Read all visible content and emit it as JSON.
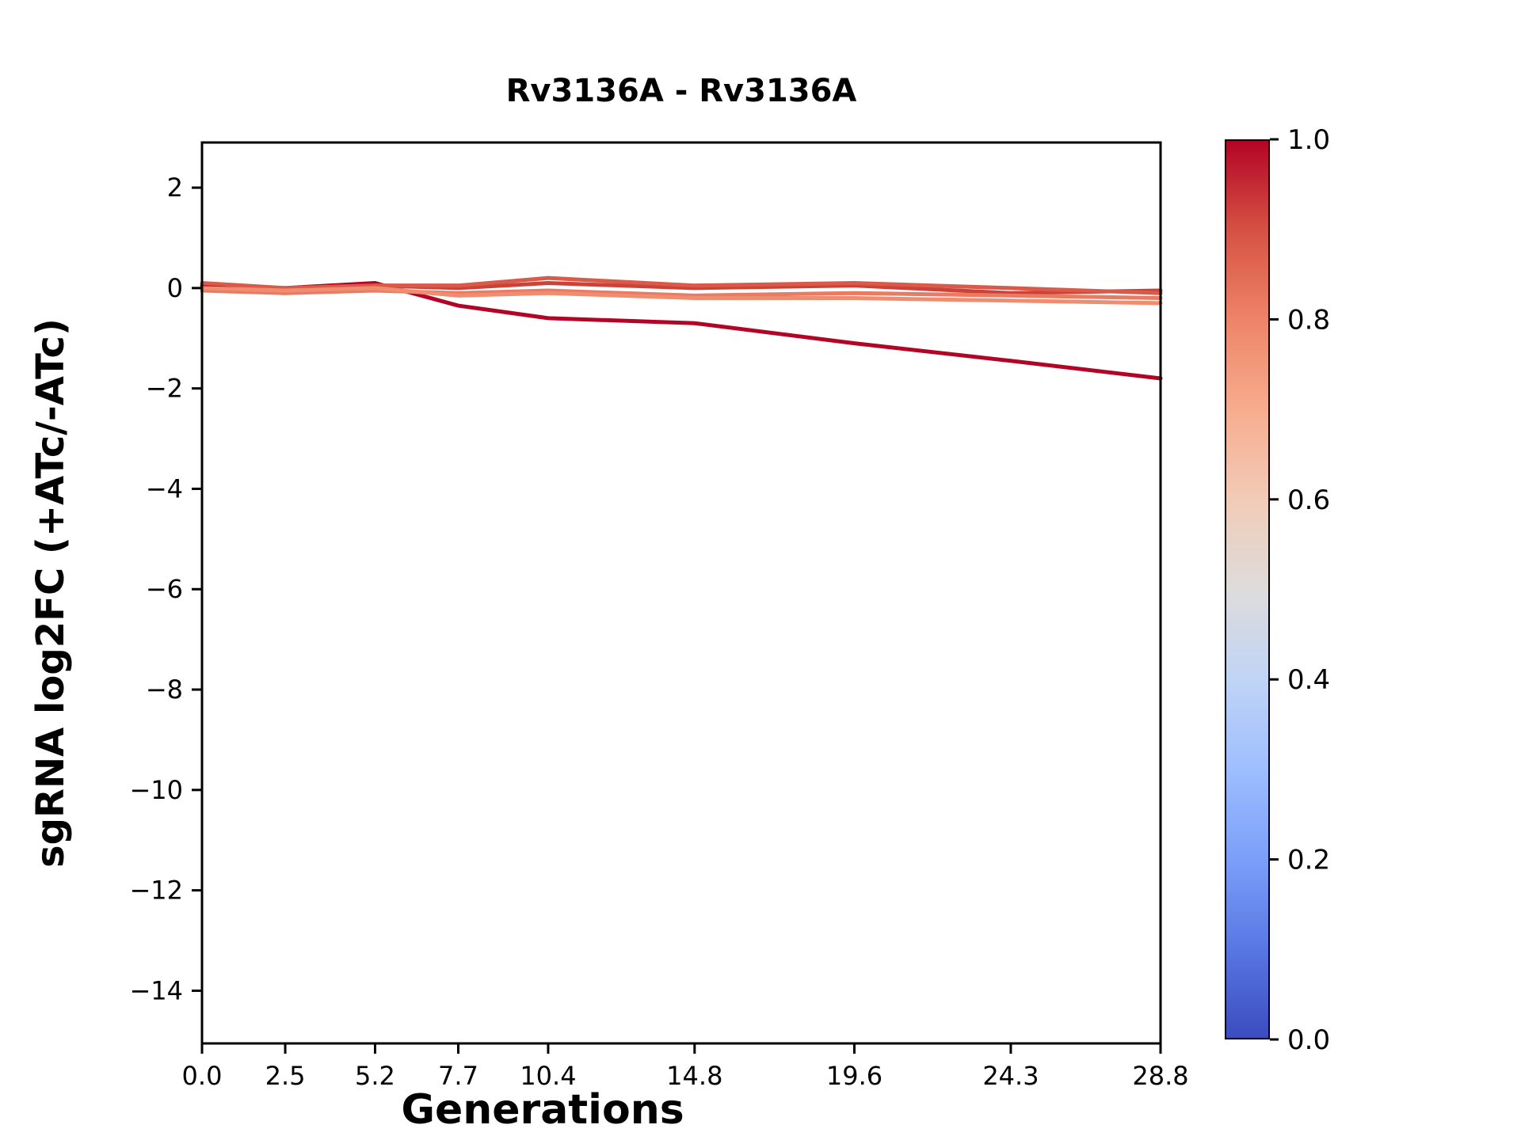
{
  "figure": {
    "background_color": "#ffffff",
    "spine_color": "#000000"
  },
  "chart_data": {
    "type": "line",
    "title": "Rv3136A - Rv3136A",
    "xlabel": "Generations",
    "ylabel": "sgRNA log2FC (+ATc/-ATc)",
    "x": [
      0.0,
      2.5,
      5.2,
      7.7,
      10.4,
      14.8,
      19.6,
      24.3,
      28.8
    ],
    "xtick_labels": [
      "0.0",
      "2.5",
      "5.2",
      "7.7",
      "10.4",
      "14.8",
      "19.6",
      "24.3",
      "28.8"
    ],
    "yticks": [
      2,
      0,
      -2,
      -4,
      -6,
      -8,
      -10,
      -12,
      -14
    ],
    "ytick_labels": [
      "2",
      "0",
      "−2",
      "−4",
      "−6",
      "−8",
      "−10",
      "−12",
      "−14"
    ],
    "xlim": [
      0.0,
      28.8
    ],
    "ylim": [
      -15.05,
      2.9
    ],
    "grid": false,
    "legend": "none",
    "series": [
      {
        "colormap_value": 1.0,
        "color": "#b40426",
        "values": [
          0.05,
          0.0,
          0.1,
          -0.35,
          -0.6,
          -0.7,
          -1.1,
          -1.45,
          -1.8
        ]
      },
      {
        "colormap_value": 0.93,
        "color": "#cc4238",
        "values": [
          0.0,
          -0.1,
          0.05,
          0.0,
          0.1,
          0.0,
          0.05,
          -0.1,
          -0.05
        ]
      },
      {
        "colormap_value": 0.88,
        "color": "#d95a48",
        "values": [
          0.1,
          0.0,
          0.05,
          0.05,
          0.2,
          0.05,
          0.1,
          0.0,
          -0.1
        ]
      },
      {
        "colormap_value": 0.82,
        "color": "#e87b62",
        "values": [
          -0.05,
          -0.1,
          -0.05,
          -0.1,
          -0.05,
          -0.15,
          -0.1,
          -0.15,
          -0.2
        ]
      },
      {
        "colormap_value": 0.78,
        "color": "#f08c70",
        "values": [
          0.0,
          -0.05,
          0.0,
          -0.15,
          -0.1,
          -0.2,
          -0.2,
          -0.25,
          -0.3
        ]
      }
    ],
    "colorbar": {
      "min": 0.0,
      "max": 1.0,
      "tick_labels": [
        "0.0",
        "0.2",
        "0.4",
        "0.6",
        "0.8",
        "1.0"
      ],
      "colormap": "coolwarm",
      "stops": [
        {
          "pos": 0.0,
          "color": "#3b4cc0"
        },
        {
          "pos": 0.1,
          "color": "#5977e3"
        },
        {
          "pos": 0.2,
          "color": "#7b9ff9"
        },
        {
          "pos": 0.3,
          "color": "#9ebeff"
        },
        {
          "pos": 0.4,
          "color": "#c0d4f5"
        },
        {
          "pos": 0.5,
          "color": "#dddcdb"
        },
        {
          "pos": 0.6,
          "color": "#f2cbb7"
        },
        {
          "pos": 0.7,
          "color": "#f7ac8e"
        },
        {
          "pos": 0.8,
          "color": "#ee8468"
        },
        {
          "pos": 0.9,
          "color": "#d65244"
        },
        {
          "pos": 1.0,
          "color": "#b40426"
        }
      ]
    }
  }
}
